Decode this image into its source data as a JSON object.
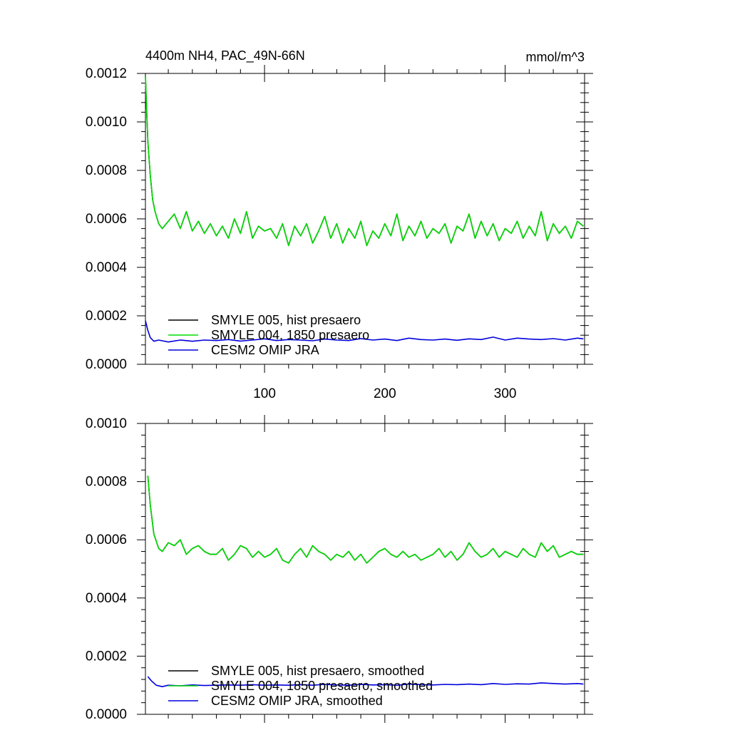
{
  "chart_data": [
    {
      "type": "line",
      "title": "4400m NH4, PAC_49N-66N",
      "units": "mmol/m^3",
      "xlim": [
        1,
        366
      ],
      "ylim": [
        0,
        0.0012
      ],
      "y_ticks": [
        "0.0000",
        "0.0002",
        "0.0004",
        "0.0006",
        "0.0008",
        "0.0010",
        "0.0012"
      ],
      "x_ticks": [
        "100",
        "200",
        "300"
      ],
      "series": [
        {
          "name": "SMYLE 005, hist presaero",
          "color": "#000000",
          "x": [
            1,
            2,
            3,
            5,
            7,
            9,
            12,
            15,
            20,
            25,
            30,
            35,
            40,
            45,
            50,
            55,
            60,
            65,
            70,
            75,
            80,
            85,
            90,
            95,
            100,
            105,
            110,
            115,
            120,
            125,
            130,
            135,
            140,
            145,
            150,
            155,
            160,
            165,
            170,
            175,
            180,
            185,
            190,
            195,
            200,
            205,
            210,
            215,
            220,
            225,
            230,
            235,
            240,
            245,
            250,
            255,
            260,
            265,
            270,
            275,
            280,
            285,
            290,
            295,
            300,
            305,
            310,
            315,
            320,
            325,
            330,
            335,
            340,
            345,
            350,
            355,
            360,
            365
          ],
          "y": [
            0.00119,
            0.00105,
            0.00092,
            0.00078,
            0.00068,
            0.00063,
            0.00058,
            0.00056,
            0.00059,
            0.00062,
            0.00056,
            0.00063,
            0.00055,
            0.00059,
            0.00054,
            0.00058,
            0.00053,
            0.00057,
            0.00052,
            0.0006,
            0.00054,
            0.00063,
            0.00052,
            0.00057,
            0.00055,
            0.00056,
            0.00052,
            0.00058,
            0.00049,
            0.00057,
            0.00053,
            0.00058,
            0.0005,
            0.00055,
            0.00061,
            0.00052,
            0.00058,
            0.0005,
            0.00056,
            0.00052,
            0.00059,
            0.00049,
            0.00055,
            0.00052,
            0.00058,
            0.00053,
            0.00062,
            0.00051,
            0.00057,
            0.00053,
            0.00059,
            0.00052,
            0.00056,
            0.00054,
            0.00058,
            0.0005,
            0.00057,
            0.00055,
            0.00062,
            0.00052,
            0.00059,
            0.00053,
            0.00058,
            0.00051,
            0.00056,
            0.00054,
            0.00059,
            0.00052,
            0.00057,
            0.00053,
            0.00063,
            0.00051,
            0.00058,
            0.00054,
            0.00057,
            0.00052,
            0.00059,
            0.00057
          ]
        },
        {
          "name": "SMYLE 004, 1850 presaero",
          "color": "#00dd00",
          "x": [
            1,
            2,
            3,
            5,
            7,
            9,
            12,
            15,
            20,
            25,
            30,
            35,
            40,
            45,
            50,
            55,
            60,
            65,
            70,
            75,
            80,
            85,
            90,
            95,
            100,
            105,
            110,
            115,
            120,
            125,
            130,
            135,
            140,
            145,
            150,
            155,
            160,
            165,
            170,
            175,
            180,
            185,
            190,
            195,
            200,
            205,
            210,
            215,
            220,
            225,
            230,
            235,
            240,
            245,
            250,
            255,
            260,
            265,
            270,
            275,
            280,
            285,
            290,
            295,
            300,
            305,
            310,
            315,
            320,
            325,
            330,
            335,
            340,
            345,
            350,
            355,
            360,
            365
          ],
          "y": [
            0.00119,
            0.00105,
            0.00092,
            0.00078,
            0.00068,
            0.00063,
            0.00058,
            0.00056,
            0.00059,
            0.00062,
            0.00056,
            0.00063,
            0.00055,
            0.00059,
            0.00054,
            0.00058,
            0.00053,
            0.00057,
            0.00052,
            0.0006,
            0.00054,
            0.00063,
            0.00052,
            0.00057,
            0.00055,
            0.00056,
            0.00052,
            0.00058,
            0.00049,
            0.00057,
            0.00053,
            0.00058,
            0.0005,
            0.00055,
            0.00061,
            0.00052,
            0.00058,
            0.0005,
            0.00056,
            0.00052,
            0.00059,
            0.00049,
            0.00055,
            0.00052,
            0.00058,
            0.00053,
            0.00062,
            0.00051,
            0.00057,
            0.00053,
            0.00059,
            0.00052,
            0.00056,
            0.00054,
            0.00058,
            0.0005,
            0.00057,
            0.00055,
            0.00062,
            0.00052,
            0.00059,
            0.00053,
            0.00058,
            0.00051,
            0.00056,
            0.00054,
            0.00059,
            0.00052,
            0.00057,
            0.00053,
            0.00063,
            0.00051,
            0.00058,
            0.00054,
            0.00057,
            0.00052,
            0.00059,
            0.00057
          ]
        },
        {
          "name": "CESM2 OMIP JRA",
          "color": "#0000dd",
          "x": [
            1,
            3,
            5,
            8,
            12,
            20,
            30,
            40,
            50,
            60,
            70,
            80,
            90,
            100,
            110,
            120,
            130,
            140,
            150,
            160,
            170,
            180,
            190,
            200,
            210,
            220,
            230,
            240,
            250,
            260,
            270,
            280,
            290,
            300,
            310,
            320,
            330,
            340,
            350,
            360,
            365
          ],
          "y": [
            0.00018,
            0.00014,
            0.00011,
            9.5e-05,
            0.0001,
            9.2e-05,
            0.0001,
            9.5e-05,
            0.0001,
            9.8e-05,
            0.000102,
            9.6e-05,
            0.0001,
            0.000105,
            9.8e-05,
            0.000102,
            0.0001,
            9.7e-05,
            0.000104,
            0.0001,
            9.8e-05,
            0.000106,
            0.0001,
            0.000104,
            9.8e-05,
            0.000108,
            0.000102,
            0.0001,
            0.000104,
            9.9e-05,
            0.000105,
            0.000102,
            0.000112,
            0.0001,
            0.000108,
            0.000104,
            0.000102,
            0.000106,
            0.0001,
            0.000108,
            0.000105
          ]
        }
      ],
      "legend_position": "bottom-left"
    },
    {
      "type": "line",
      "xlim": [
        1,
        366
      ],
      "ylim": [
        0,
        0.001
      ],
      "y_ticks": [
        "0.0000",
        "0.0002",
        "0.0004",
        "0.0006",
        "0.0008",
        "0.0010"
      ],
      "x_ticks": [],
      "series": [
        {
          "name": "SMYLE 005, hist presaero, smoothed",
          "color": "#000000",
          "x": [
            3,
            5,
            8,
            12,
            15,
            20,
            25,
            30,
            35,
            40,
            45,
            50,
            55,
            60,
            65,
            70,
            75,
            80,
            85,
            90,
            95,
            100,
            105,
            110,
            115,
            120,
            125,
            130,
            135,
            140,
            145,
            150,
            155,
            160,
            165,
            170,
            175,
            180,
            185,
            190,
            195,
            200,
            205,
            210,
            215,
            220,
            225,
            230,
            235,
            240,
            245,
            250,
            255,
            260,
            265,
            270,
            275,
            280,
            285,
            290,
            295,
            300,
            305,
            310,
            315,
            320,
            325,
            330,
            335,
            340,
            345,
            350,
            355,
            360,
            365
          ],
          "y": [
            0.00082,
            0.00072,
            0.00062,
            0.00057,
            0.00056,
            0.00059,
            0.00058,
            0.0006,
            0.00055,
            0.00057,
            0.00058,
            0.00056,
            0.00055,
            0.00055,
            0.00057,
            0.00053,
            0.00055,
            0.00058,
            0.00057,
            0.00054,
            0.00056,
            0.00054,
            0.00055,
            0.00057,
            0.00053,
            0.00052,
            0.00055,
            0.00057,
            0.00054,
            0.00058,
            0.00056,
            0.00055,
            0.00053,
            0.00055,
            0.00054,
            0.00056,
            0.00053,
            0.00055,
            0.00052,
            0.00054,
            0.00056,
            0.00057,
            0.00055,
            0.00054,
            0.00056,
            0.00054,
            0.00055,
            0.00053,
            0.00054,
            0.00055,
            0.00057,
            0.00054,
            0.00056,
            0.00053,
            0.00055,
            0.00059,
            0.00056,
            0.00054,
            0.00055,
            0.00057,
            0.00054,
            0.00056,
            0.00055,
            0.00054,
            0.00057,
            0.00055,
            0.00054,
            0.00059,
            0.00056,
            0.00058,
            0.00054,
            0.00055,
            0.00056,
            0.00055,
            0.00055
          ]
        },
        {
          "name": "SMYLE 004, 1850 presaero, smoothed",
          "color": "#00dd00",
          "x": [
            3,
            5,
            8,
            12,
            15,
            20,
            25,
            30,
            35,
            40,
            45,
            50,
            55,
            60,
            65,
            70,
            75,
            80,
            85,
            90,
            95,
            100,
            105,
            110,
            115,
            120,
            125,
            130,
            135,
            140,
            145,
            150,
            155,
            160,
            165,
            170,
            175,
            180,
            185,
            190,
            195,
            200,
            205,
            210,
            215,
            220,
            225,
            230,
            235,
            240,
            245,
            250,
            255,
            260,
            265,
            270,
            275,
            280,
            285,
            290,
            295,
            300,
            305,
            310,
            315,
            320,
            325,
            330,
            335,
            340,
            345,
            350,
            355,
            360,
            365
          ],
          "y": [
            0.00082,
            0.00072,
            0.00062,
            0.00057,
            0.00056,
            0.00059,
            0.00058,
            0.0006,
            0.00055,
            0.00057,
            0.00058,
            0.00056,
            0.00055,
            0.00055,
            0.00057,
            0.00053,
            0.00055,
            0.00058,
            0.00057,
            0.00054,
            0.00056,
            0.00054,
            0.00055,
            0.00057,
            0.00053,
            0.00052,
            0.00055,
            0.00057,
            0.00054,
            0.00058,
            0.00056,
            0.00055,
            0.00053,
            0.00055,
            0.00054,
            0.00056,
            0.00053,
            0.00055,
            0.00052,
            0.00054,
            0.00056,
            0.00057,
            0.00055,
            0.00054,
            0.00056,
            0.00054,
            0.00055,
            0.00053,
            0.00054,
            0.00055,
            0.00057,
            0.00054,
            0.00056,
            0.00053,
            0.00055,
            0.00059,
            0.00056,
            0.00054,
            0.00055,
            0.00057,
            0.00054,
            0.00056,
            0.00055,
            0.00054,
            0.00057,
            0.00055,
            0.00054,
            0.00059,
            0.00056,
            0.00058,
            0.00054,
            0.00055,
            0.00056,
            0.00055,
            0.00055
          ]
        },
        {
          "name": "CESM2 OMIP JRA, smoothed",
          "color": "#0000dd",
          "x": [
            3,
            6,
            10,
            15,
            20,
            30,
            40,
            50,
            60,
            70,
            80,
            90,
            100,
            110,
            120,
            130,
            140,
            150,
            160,
            170,
            180,
            190,
            200,
            210,
            220,
            230,
            240,
            250,
            260,
            270,
            280,
            290,
            300,
            310,
            320,
            330,
            340,
            350,
            360,
            365
          ],
          "y": [
            0.00013,
            0.000115,
            0.0001,
            9.5e-05,
            0.0001,
            9.8e-05,
            0.000101,
            9.9e-05,
            0.0001,
            0.000101,
            0.0001,
            0.000102,
            0.0001,
            0.000101,
            0.0001,
            0.000102,
            0.0001,
            0.000103,
            0.000101,
            0.0001,
            0.000103,
            0.000101,
            0.000102,
            0.0001,
            0.000104,
            0.000102,
            0.000101,
            0.000103,
            0.000102,
            0.000104,
            0.000102,
            0.000106,
            0.000103,
            0.000105,
            0.000104,
            0.000108,
            0.000106,
            0.000104,
            0.000106,
            0.000104
          ]
        }
      ],
      "legend_position": "bottom-left"
    }
  ]
}
